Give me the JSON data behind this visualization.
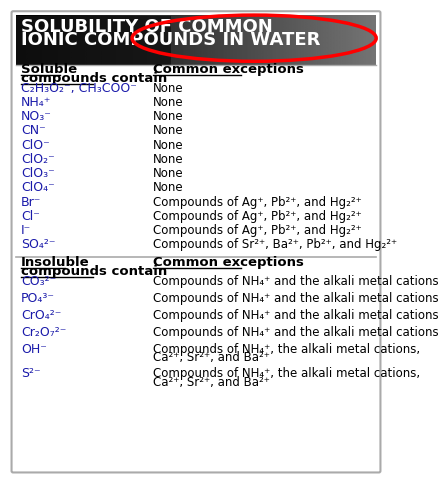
{
  "title_line1": "SOLUBILITY OF COMMON",
  "title_line2": "IONIC COMPOUNDS IN WATER",
  "bg_color": "#ffffff",
  "border_color": "#aaaaaa",
  "text_color": "#000000",
  "blue_color": "#1a1aaa",
  "soluble_header1": "Soluble",
  "soluble_header2": "compounds contain",
  "exception_header": "Common exceptions",
  "soluble_rows": [
    {
      "ion": "C₂H₃O₂⁻, CH₃COO⁻",
      "exception": "None"
    },
    {
      "ion": "NH₄⁺",
      "exception": "None"
    },
    {
      "ion": "NO₃⁻",
      "exception": "None"
    },
    {
      "ion": "CN⁻",
      "exception": "None"
    },
    {
      "ion": "ClO⁻",
      "exception": "None"
    },
    {
      "ion": "ClO₂⁻",
      "exception": "None"
    },
    {
      "ion": "ClO₃⁻",
      "exception": "None"
    },
    {
      "ion": "ClO₄⁻",
      "exception": "None"
    },
    {
      "ion": "Br⁻",
      "exception": "Compounds of Ag⁺, Pb²⁺, and Hg₂²⁺"
    },
    {
      "ion": "Cl⁻",
      "exception": "Compounds of Ag⁺, Pb²⁺, and Hg₂²⁺"
    },
    {
      "ion": "I⁻",
      "exception": "Compounds of Ag⁺, Pb²⁺, and Hg₂²⁺"
    },
    {
      "ion": "SO₄²⁻",
      "exception": "Compounds of Sr²⁺, Ba²⁺, Pb²⁺, and Hg₂²⁺"
    }
  ],
  "insoluble_header1": "Insoluble",
  "insoluble_header2": "compounds contain",
  "insoluble_rows": [
    {
      "ion": "CO₃²⁻",
      "exception": "Compounds of NH₄⁺ and the alkali metal cations"
    },
    {
      "ion": "PO₄³⁻",
      "exception": "Compounds of NH₄⁺ and the alkali metal cations"
    },
    {
      "ion": "CrO₄²⁻",
      "exception": "Compounds of NH₄⁺ and the alkali metal cations"
    },
    {
      "ion": "Cr₂O₇²⁻",
      "exception": "Compounds of NH₄⁺ and the alkali metal cations"
    },
    {
      "ion": "OH⁻",
      "exception": "Compounds of NH₄⁺, the alkali metal cations,\nCa²⁺, Sr²⁺, and Ba²⁺"
    },
    {
      "ion": "S²⁻",
      "exception": "Compounds of NH₄⁺, the alkali metal cations,\nCa²⁺, Sr²⁺, and Ba²⁺"
    }
  ]
}
